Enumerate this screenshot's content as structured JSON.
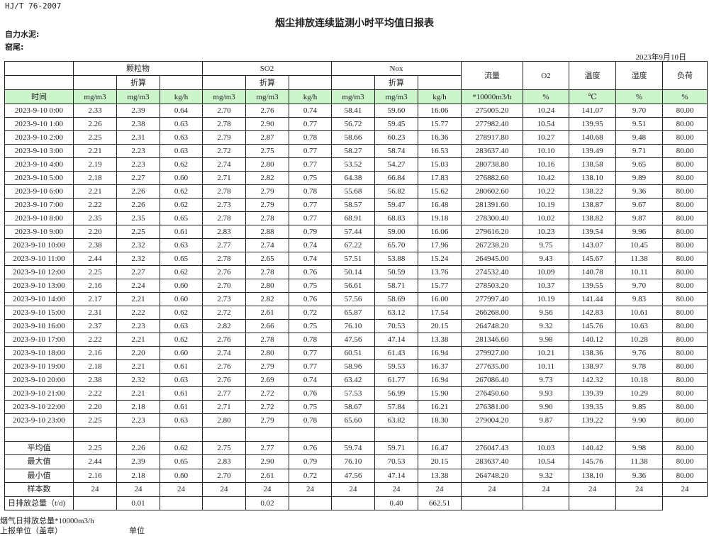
{
  "standard": "HJ/T  76-2007",
  "title": "烟尘排放连续监测小时平均值日报表",
  "company": "自力水泥:",
  "kiln": "窑尾:",
  "report_date": "2023年9月10日",
  "header": {
    "groups": [
      "颗粒物",
      "SO2",
      "Nox"
    ],
    "converted": "折算",
    "single": [
      "流量",
      "O2",
      "温度",
      "湿度",
      "负荷"
    ],
    "time_label": "时间",
    "units": [
      "mg/m3",
      "mg/m3",
      "kg/h",
      "mg/m3",
      "mg/m3",
      "kg/h",
      "mg/m3",
      "mg/m3",
      "kg/h",
      "*10000m3/h",
      "%",
      "℃",
      "%",
      "%"
    ]
  },
  "rows": [
    [
      "2023-9-10 0:00",
      "2.33",
      "2.39",
      "0.64",
      "2.70",
      "2.76",
      "0.74",
      "58.41",
      "59.60",
      "16.06",
      "275005.20",
      "10.24",
      "141.07",
      "9.70",
      "80.00"
    ],
    [
      "2023-9-10 1:00",
      "2.26",
      "2.38",
      "0.63",
      "2.78",
      "2.90",
      "0.77",
      "56.72",
      "59.45",
      "15.77",
      "277982.40",
      "10.54",
      "139.95",
      "9.51",
      "80.00"
    ],
    [
      "2023-9-10 2:00",
      "2.25",
      "2.31",
      "0.63",
      "2.79",
      "2.87",
      "0.78",
      "58.66",
      "60.23",
      "16.36",
      "278917.80",
      "10.27",
      "140.68",
      "9.48",
      "80.00"
    ],
    [
      "2023-9-10 3:00",
      "2.21",
      "2.23",
      "0.63",
      "2.72",
      "2.75",
      "0.77",
      "58.27",
      "58.74",
      "16.53",
      "283637.40",
      "10.10",
      "139.49",
      "9.71",
      "80.00"
    ],
    [
      "2023-9-10 4:00",
      "2.19",
      "2.23",
      "0.62",
      "2.74",
      "2.80",
      "0.77",
      "53.52",
      "54.27",
      "15.03",
      "280738.80",
      "10.16",
      "138.58",
      "9.65",
      "80.00"
    ],
    [
      "2023-9-10 5:00",
      "2.18",
      "2.27",
      "0.60",
      "2.71",
      "2.82",
      "0.75",
      "64.38",
      "66.84",
      "17.83",
      "276882.60",
      "10.42",
      "138.10",
      "9.89",
      "80.00"
    ],
    [
      "2023-9-10 6:00",
      "2.21",
      "2.26",
      "0.62",
      "2.78",
      "2.79",
      "0.78",
      "55.68",
      "56.82",
      "15.62",
      "280602.60",
      "10.22",
      "138.22",
      "9.36",
      "80.00"
    ],
    [
      "2023-9-10 7:00",
      "2.22",
      "2.26",
      "0.62",
      "2.73",
      "2.79",
      "0.77",
      "58.57",
      "59.47",
      "16.48",
      "281391.60",
      "10.19",
      "138.87",
      "9.67",
      "80.00"
    ],
    [
      "2023-9-10 8:00",
      "2.35",
      "2.35",
      "0.65",
      "2.78",
      "2.78",
      "0.77",
      "68.91",
      "68.83",
      "19.18",
      "278300.40",
      "10.02",
      "138.82",
      "9.87",
      "80.00"
    ],
    [
      "2023-9-10 9:00",
      "2.20",
      "2.25",
      "0.61",
      "2.83",
      "2.88",
      "0.79",
      "57.44",
      "59.00",
      "16.06",
      "279616.20",
      "10.23",
      "139.54",
      "9.96",
      "80.00"
    ],
    [
      "2023-9-10 10:00",
      "2.38",
      "2.32",
      "0.63",
      "2.77",
      "2.74",
      "0.74",
      "67.22",
      "65.70",
      "17.96",
      "267238.20",
      "9.75",
      "143.07",
      "10.45",
      "80.00"
    ],
    [
      "2023-9-10 11:00",
      "2.44",
      "2.32",
      "0.65",
      "2.78",
      "2.65",
      "0.74",
      "57.51",
      "53.88",
      "15.24",
      "264945.00",
      "9.43",
      "145.67",
      "11.38",
      "80.00"
    ],
    [
      "2023-9-10 12:00",
      "2.25",
      "2.27",
      "0.62",
      "2.76",
      "2.78",
      "0.76",
      "50.14",
      "50.59",
      "13.76",
      "274532.40",
      "10.09",
      "140.78",
      "10.11",
      "80.00"
    ],
    [
      "2023-9-10 13:00",
      "2.16",
      "2.24",
      "0.60",
      "2.70",
      "2.80",
      "0.75",
      "56.61",
      "58.71",
      "15.77",
      "278503.20",
      "10.37",
      "139.55",
      "9.70",
      "80.00"
    ],
    [
      "2023-9-10 14:00",
      "2.17",
      "2.21",
      "0.60",
      "2.73",
      "2.82",
      "0.76",
      "57.56",
      "58.69",
      "16.00",
      "277997.40",
      "10.19",
      "141.44",
      "9.83",
      "80.00"
    ],
    [
      "2023-9-10 15:00",
      "2.31",
      "2.22",
      "0.62",
      "2.72",
      "2.61",
      "0.72",
      "65.87",
      "63.12",
      "17.54",
      "266268.00",
      "9.56",
      "142.83",
      "10.61",
      "80.00"
    ],
    [
      "2023-9-10 16:00",
      "2.37",
      "2.23",
      "0.63",
      "2.82",
      "2.66",
      "0.75",
      "76.10",
      "70.53",
      "20.15",
      "264748.20",
      "9.32",
      "145.76",
      "10.63",
      "80.00"
    ],
    [
      "2023-9-10 17:00",
      "2.22",
      "2.21",
      "0.62",
      "2.76",
      "2.78",
      "0.78",
      "47.56",
      "47.14",
      "13.38",
      "281346.60",
      "9.98",
      "140.12",
      "10.28",
      "80.00"
    ],
    [
      "2023-9-10 18:00",
      "2.16",
      "2.20",
      "0.60",
      "2.74",
      "2.80",
      "0.77",
      "60.51",
      "61.43",
      "16.94",
      "279927.00",
      "10.21",
      "138.36",
      "9.76",
      "80.00"
    ],
    [
      "2023-9-10 19:00",
      "2.18",
      "2.21",
      "0.61",
      "2.76",
      "2.79",
      "0.77",
      "58.96",
      "59.53",
      "16.37",
      "277635.00",
      "10.11",
      "138.97",
      "9.78",
      "80.00"
    ],
    [
      "2023-9-10 20:00",
      "2.38",
      "2.32",
      "0.63",
      "2.76",
      "2.69",
      "0.74",
      "63.42",
      "61.77",
      "16.94",
      "267086.40",
      "9.73",
      "142.32",
      "10.18",
      "80.00"
    ],
    [
      "2023-9-10 21:00",
      "2.22",
      "2.21",
      "0.61",
      "2.77",
      "2.72",
      "0.76",
      "57.53",
      "56.99",
      "15.90",
      "276450.60",
      "9.93",
      "139.39",
      "10.29",
      "80.00"
    ],
    [
      "2023-9-10 22:00",
      "2.20",
      "2.18",
      "0.61",
      "2.71",
      "2.72",
      "0.75",
      "58.67",
      "57.84",
      "16.21",
      "276381.00",
      "9.90",
      "139.35",
      "9.85",
      "80.00"
    ],
    [
      "2023-9-10 23:00",
      "2.25",
      "2.23",
      "0.63",
      "2.80",
      "2.79",
      "0.78",
      "65.60",
      "63.82",
      "18.30",
      "279004.20",
      "9.87",
      "139.22",
      "9.90",
      "80.00"
    ]
  ],
  "stats": [
    [
      "平均值",
      "2.25",
      "2.26",
      "0.62",
      "2.75",
      "2.77",
      "0.76",
      "59.74",
      "59.71",
      "16.47",
      "276047.43",
      "10.03",
      "140.42",
      "9.98",
      "80.00"
    ],
    [
      "最大值",
      "2.44",
      "2.39",
      "0.65",
      "2.83",
      "2.90",
      "0.79",
      "76.10",
      "70.53",
      "20.15",
      "283637.40",
      "10.54",
      "145.76",
      "11.38",
      "80.00"
    ],
    [
      "最小值",
      "2.16",
      "2.18",
      "0.60",
      "2.70",
      "2.61",
      "0.72",
      "47.56",
      "47.14",
      "13.38",
      "264748.20",
      "9.32",
      "138.10",
      "9.36",
      "80.00"
    ],
    [
      "样本数",
      "24",
      "24",
      "24",
      "24",
      "24",
      "24",
      "24",
      "24",
      "24",
      "24",
      "24",
      "24",
      "24",
      "24"
    ]
  ],
  "daily_total": [
    "日排放总量（t/d)",
    "",
    "0.01",
    "",
    "",
    "0.02",
    "",
    "",
    "0.40",
    "662.51",
    "",
    "",
    "",
    ""
  ],
  "footer": {
    "flue_gas_total": "烟气日排放总量*10000m3/h",
    "reporting_unit": "上报单位（盖章）",
    "unit": "单位"
  },
  "colors": {
    "unit_row_bg": "#ccf5cc"
  }
}
